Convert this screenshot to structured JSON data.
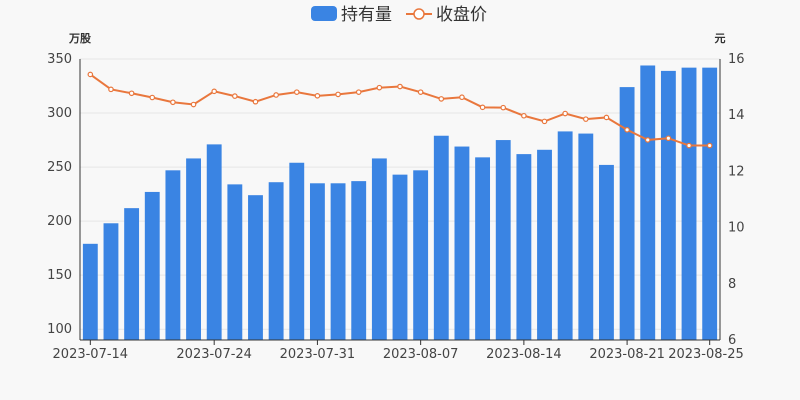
{
  "chart_data": {
    "type": "bar",
    "x": [
      "2023-07-14",
      "2023-07-17",
      "2023-07-18",
      "2023-07-19",
      "2023-07-20",
      "2023-07-21",
      "2023-07-24",
      "2023-07-25",
      "2023-07-26",
      "2023-07-27",
      "2023-07-28",
      "2023-07-31",
      "2023-08-01",
      "2023-08-02",
      "2023-08-03",
      "2023-08-04",
      "2023-08-07",
      "2023-08-08",
      "2023-08-09",
      "2023-08-10",
      "2023-08-11",
      "2023-08-14",
      "2023-08-15",
      "2023-08-16",
      "2023-08-17",
      "2023-08-18",
      "2023-08-21",
      "2023-08-22",
      "2023-08-23",
      "2023-08-24",
      "2023-08-25"
    ],
    "xticks": [
      "2023-07-14",
      "2023-07-24",
      "2023-07-31",
      "2023-08-07",
      "2023-08-14",
      "2023-08-21",
      "2023-08-25"
    ],
    "series": [
      {
        "name": "持有量",
        "type": "bar",
        "axis": "left",
        "color": "#3a84e3",
        "values": [
          179,
          198,
          212,
          227,
          247,
          258,
          271,
          234,
          224,
          236,
          254,
          235,
          235,
          237,
          258,
          243,
          247,
          279,
          269,
          259,
          275,
          262,
          266,
          283,
          281,
          252,
          324,
          344,
          339,
          342,
          342
        ]
      },
      {
        "name": "收盘价",
        "type": "line",
        "axis": "right",
        "color": "#e9773d",
        "values": [
          15.45,
          14.92,
          14.78,
          14.63,
          14.46,
          14.38,
          14.85,
          14.68,
          14.48,
          14.72,
          14.82,
          14.69,
          14.74,
          14.82,
          14.98,
          15.02,
          14.82,
          14.58,
          14.64,
          14.28,
          14.27,
          13.98,
          13.78,
          14.06,
          13.86,
          13.92,
          13.48,
          13.12,
          13.18,
          12.92,
          12.92
        ]
      }
    ],
    "yleft": {
      "label": "万股",
      "ylim": [
        90,
        350
      ],
      "ticks": [
        100,
        150,
        200,
        250,
        300,
        350
      ]
    },
    "yright": {
      "label": "元",
      "ylim": [
        6,
        16
      ],
      "ticks": [
        6,
        8,
        10,
        12,
        14,
        16
      ]
    },
    "legend_position": "top-center",
    "grid": true
  }
}
